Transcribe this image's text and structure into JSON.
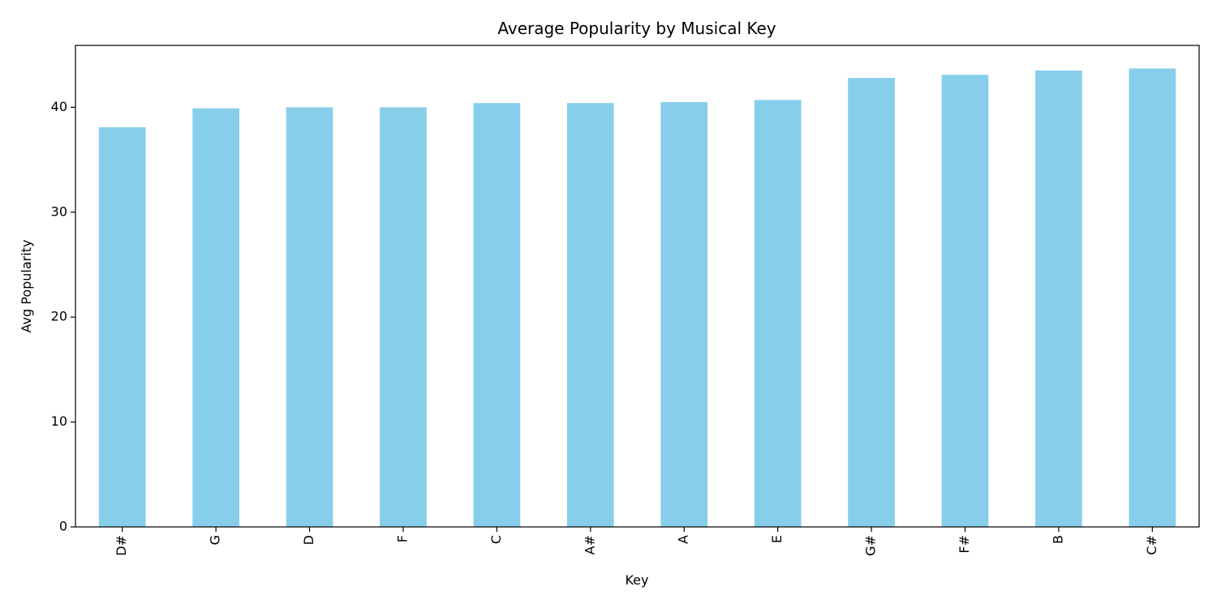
{
  "chart_data": {
    "type": "bar",
    "title": "Average Popularity by Musical Key",
    "xlabel": "Key",
    "ylabel": "Avg Popularity",
    "categories": [
      "D#",
      "G",
      "D",
      "F",
      "C",
      "A#",
      "A",
      "E",
      "G#",
      "F#",
      "B",
      "C#"
    ],
    "values": [
      38.1,
      39.9,
      40.0,
      40.0,
      40.4,
      40.4,
      40.5,
      40.7,
      42.8,
      43.1,
      43.5,
      43.7
    ],
    "ylim": [
      0,
      45.9
    ],
    "yticks": [
      0,
      10,
      20,
      30,
      40
    ],
    "grid": false,
    "legend": "none",
    "colors": {
      "bar": "#87CEEB",
      "axis": "#000000"
    }
  }
}
